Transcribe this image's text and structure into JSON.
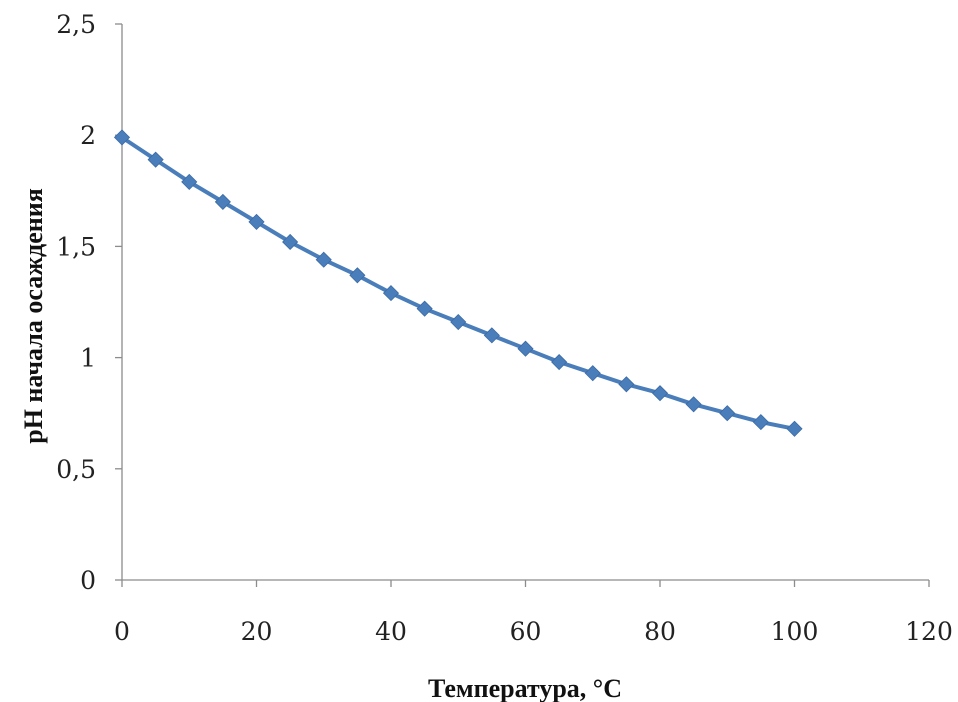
{
  "chart_data": {
    "type": "line",
    "title": "",
    "xlabel": "Температура, °C",
    "ylabel": "pH начала осаждения",
    "xlim": [
      0,
      120
    ],
    "ylim": [
      0,
      2.5
    ],
    "x_ticks": [
      "0",
      "20",
      "40",
      "60",
      "80",
      "100",
      "120"
    ],
    "y_ticks": [
      "0",
      "0,5",
      "1",
      "1,5",
      "2",
      "2,5"
    ],
    "grid": false,
    "legend": "none",
    "series": [
      {
        "color": "#4a7ebb",
        "marker": "diamond",
        "x": [
          0,
          5,
          10,
          15,
          20,
          25,
          30,
          35,
          40,
          45,
          50,
          55,
          60,
          65,
          70,
          75,
          80,
          85,
          90,
          95,
          100
        ],
        "y": [
          1.99,
          1.89,
          1.79,
          1.7,
          1.61,
          1.52,
          1.44,
          1.37,
          1.29,
          1.22,
          1.16,
          1.1,
          1.04,
          0.98,
          0.93,
          0.88,
          0.84,
          0.79,
          0.75,
          0.71,
          0.68
        ]
      }
    ]
  }
}
